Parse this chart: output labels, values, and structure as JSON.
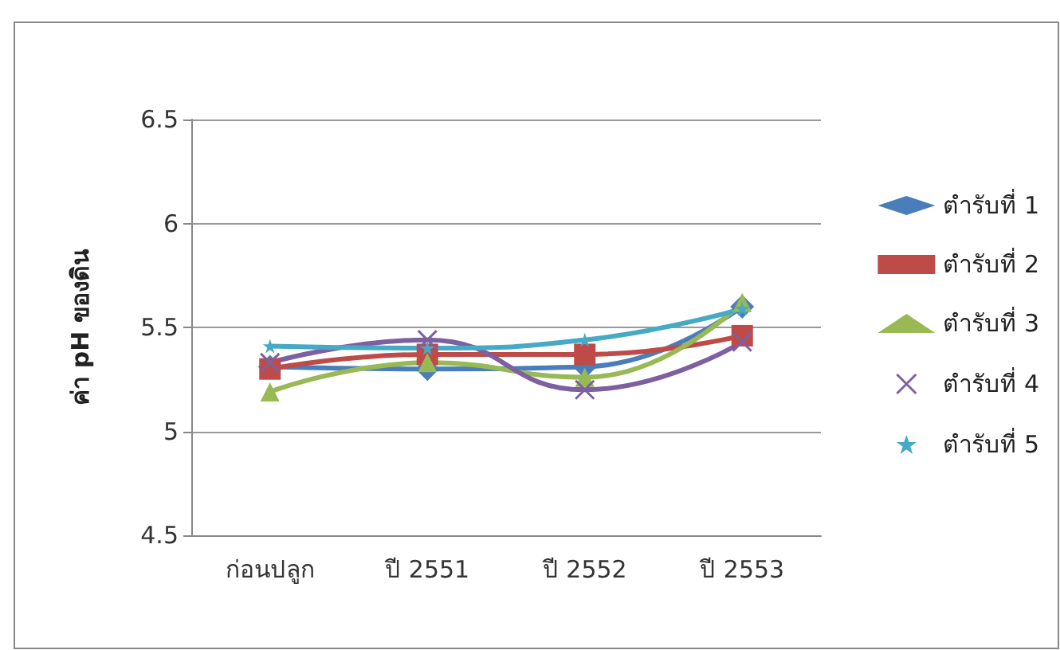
{
  "chart_data": {
    "type": "line",
    "ylabel": "ค่า pH ของดิน",
    "categories": [
      "ก่อนปลูก",
      "ปี 2551",
      "ปี 2552",
      "ปี 2553"
    ],
    "series": [
      {
        "name": "ตำรับที่ 1",
        "color": "#4a7ebb",
        "marker": "diamond",
        "values": [
          5.31,
          5.3,
          5.31,
          5.6
        ]
      },
      {
        "name": "ตำรับที่ 2",
        "color": "#be4b48",
        "marker": "square",
        "values": [
          5.3,
          5.37,
          5.37,
          5.46
        ]
      },
      {
        "name": "ตำรับที่ 3",
        "color": "#98b954",
        "marker": "triangle",
        "values": [
          5.19,
          5.33,
          5.26,
          5.62
        ]
      },
      {
        "name": "ตำรับที่ 4",
        "color": "#7d60a0",
        "marker": "cross",
        "values": [
          5.33,
          5.44,
          5.2,
          5.43
        ]
      },
      {
        "name": "ตำรับที่ 5",
        "color": "#46aac5",
        "marker": "star",
        "values": [
          5.41,
          5.4,
          5.44,
          5.59
        ]
      }
    ],
    "ylim": [
      4.5,
      6.5
    ],
    "yticks": [
      4.5,
      5,
      5.5,
      6,
      6.5
    ],
    "grid": "y",
    "legend": "right"
  }
}
